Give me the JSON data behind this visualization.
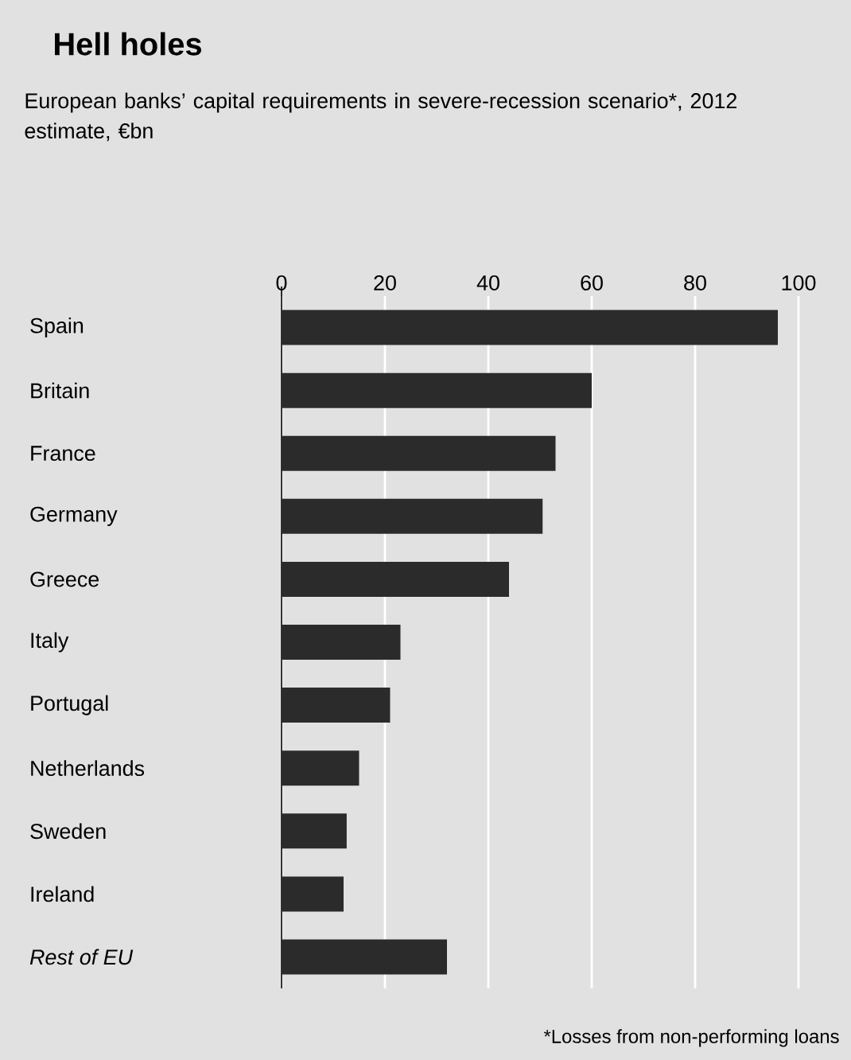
{
  "chart_data": {
    "type": "bar",
    "orientation": "horizontal",
    "title": "Hell holes",
    "subtitle": "European banks’ capital requirements in severe-recession scenario*, 2012 estimate, €bn",
    "categories": [
      "Spain",
      "Britain",
      "France",
      "Germany",
      "Greece",
      "Italy",
      "Portugal",
      "Netherlands",
      "Sweden",
      "Ireland",
      "*Rest of EU*"
    ],
    "values": [
      96,
      60,
      53,
      50.5,
      44,
      23,
      21,
      15,
      12.6,
      12,
      32
    ],
    "color": "#2b2b2b",
    "xlim": [
      0,
      100
    ],
    "xticks": [
      0,
      20,
      40,
      60,
      80,
      100
    ],
    "grid": "x",
    "annotations": [
      "*Losses from non-performing loans"
    ]
  }
}
